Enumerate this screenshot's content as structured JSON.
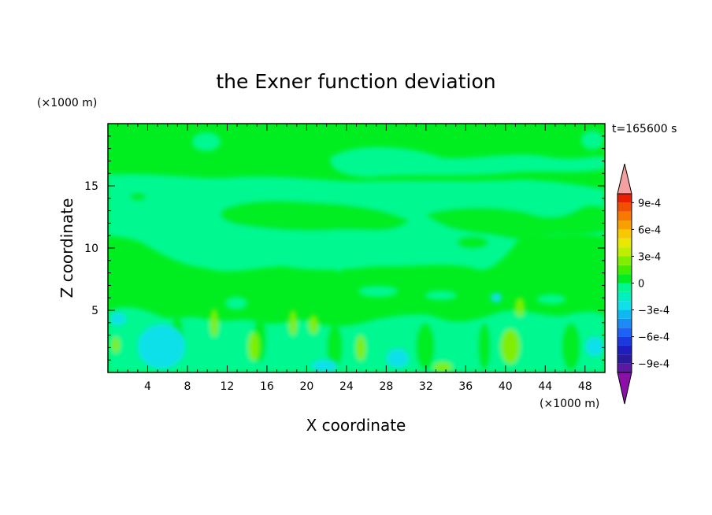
{
  "chart_data": {
    "type": "heatmap",
    "title": "the Exner function deviation",
    "xlabel": "X coordinate",
    "ylabel": "Z coordinate",
    "x_unit": "(×1000 m)",
    "y_unit": "(×1000 m)",
    "time_label": "t=165600 s",
    "xlim": [
      0,
      50
    ],
    "ylim": [
      0,
      20
    ],
    "xticks": [
      4,
      8,
      12,
      16,
      20,
      24,
      28,
      32,
      36,
      40,
      44,
      48
    ],
    "yticks": [
      5,
      10,
      15
    ],
    "colorbar": {
      "levels": [
        -0.001,
        -0.0009,
        -0.0008,
        -0.0007,
        -0.0006,
        -0.0005,
        -0.0004,
        -0.0003,
        -0.0002,
        -0.0001,
        0,
        0.0001,
        0.0002,
        0.0003,
        0.0004,
        0.0005,
        0.0006,
        0.0007,
        0.0008,
        0.0009,
        0.001
      ],
      "colors": [
        "#5a1aa0",
        "#2a1a9c",
        "#1e1ec0",
        "#1a3ae0",
        "#1c62f4",
        "#1c8cf4",
        "#10b8f0",
        "#10e0e8",
        "#00f0c0",
        "#00f890",
        "#00ee20",
        "#40ee00",
        "#80ee00",
        "#c0ee00",
        "#e8e800",
        "#f8c800",
        "#f8a000",
        "#f87800",
        "#f05000",
        "#e82000"
      ],
      "under_color": "#8a10a8",
      "over_color": "#f4a0a0",
      "tick_labels": [
        {
          "value": 0.0009,
          "label": "9e-4"
        },
        {
          "value": 0.0006,
          "label": "6e-4"
        },
        {
          "value": 0.0003,
          "label": "3e-4"
        },
        {
          "value": 0,
          "label": "0"
        },
        {
          "value": -0.0003,
          "label": "−3e-4"
        },
        {
          "value": -0.0006,
          "label": "−6e-4"
        },
        {
          "value": -0.0009,
          "label": "−9e-4"
        }
      ]
    },
    "field_regions": [
      {
        "color": "#00ee20",
        "desc": "base field near 0"
      },
      {
        "color": "#00f890",
        "x": [
          0,
          50
        ],
        "z": [
          10.5,
          15.5
        ]
      },
      {
        "color": "#00f890",
        "x": [
          22,
          50
        ],
        "z": [
          16,
          18.5
        ]
      },
      {
        "color": "#10e0e8",
        "x": [
          4,
          8
        ],
        "z": [
          0,
          2.5
        ]
      },
      {
        "color": "#10e0e8",
        "x": [
          28,
          31
        ],
        "z": [
          0,
          1.5
        ]
      },
      {
        "color": "#80ee00",
        "x": [
          39.5,
          41.5
        ],
        "z": [
          0,
          2.5
        ]
      },
      {
        "color": "#80ee00",
        "x": [
          32,
          34
        ],
        "z": [
          0,
          0.8
        ]
      }
    ]
  }
}
